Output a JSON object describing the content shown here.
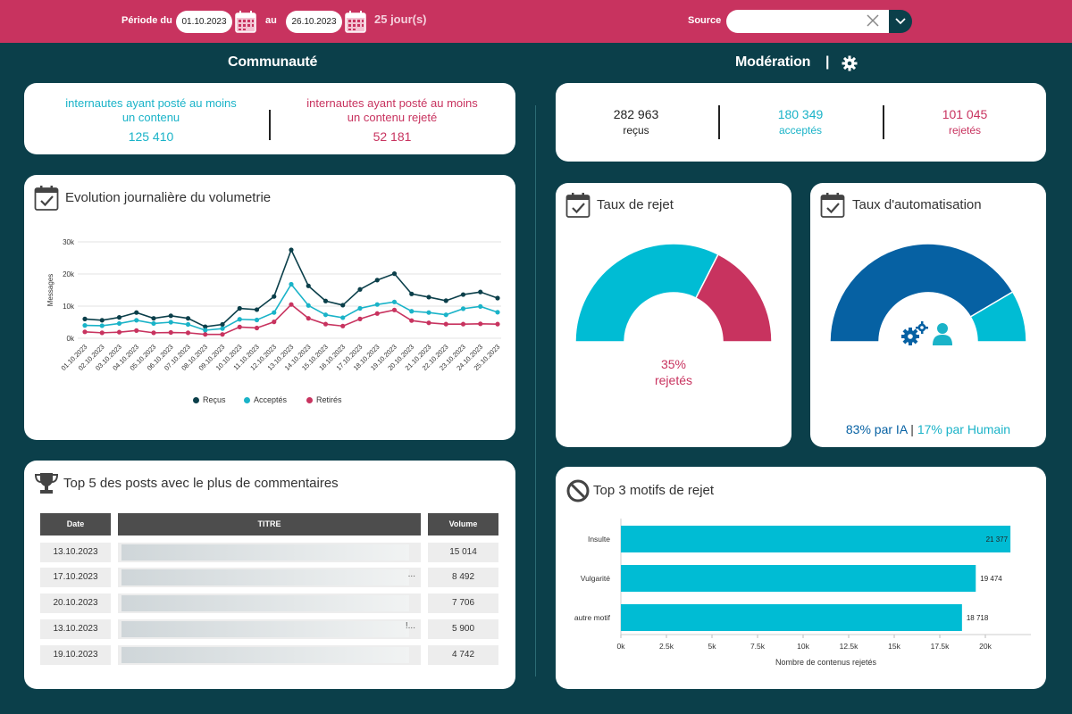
{
  "filter_bar": {
    "period_label": "Période du",
    "date_from": "01.10.2023",
    "to_label": "au",
    "date_to": "26.10.2023",
    "days": "25 jour(s)",
    "source_label": "Source",
    "source_value": "",
    "icons": [
      "calendar-icon",
      "calendar-icon",
      "close-icon",
      "chevron-down-icon"
    ]
  },
  "community": {
    "title": "Communauté",
    "kpi_posted": {
      "label_line1": "internautes ayant posté au moins",
      "label_line2": "un contenu",
      "value": "125 410",
      "color": "#1ab3c8"
    },
    "kpi_rejected": {
      "label_line1": "internautes ayant posté au moins",
      "label_line2": "un contenu rejeté",
      "value": "52 181",
      "color": "#c8335f"
    }
  },
  "moderation": {
    "title": "Modération",
    "separator": "|",
    "received": {
      "value": "282 963",
      "label": "reçus"
    },
    "accepted": {
      "value": "180 349",
      "label": "acceptés"
    },
    "rejected": {
      "value": "101 045",
      "label": "rejetés"
    }
  },
  "volumetry": {
    "title": "Evolution journalière du volumetrie",
    "chart_data": {
      "type": "line",
      "ylabel": "Messages",
      "yticks": [
        "0k",
        "10k",
        "20k",
        "30k"
      ],
      "ylim": [
        0,
        30000
      ],
      "categories": [
        "01.10.2023",
        "02.10.2023",
        "03.10.2023",
        "04.10.2023",
        "05.10.2023",
        "06.10.2023",
        "07.10.2023",
        "08.10.2023",
        "09.10.2023",
        "10.10.2023",
        "11.10.2023",
        "12.10.2023",
        "13.10.2023",
        "14.10.2023",
        "15.10.2023",
        "16.10.2023",
        "17.10.2023",
        "18.10.2023",
        "19.10.2023",
        "20.10.2023",
        "21.10.2023",
        "22.10.2023",
        "23.10.2023",
        "24.10.2023",
        "25.10.2023"
      ],
      "series": [
        {
          "name": "Reçus",
          "color": "#0b3f4a",
          "values": [
            6000,
            5600,
            6500,
            8000,
            6200,
            7000,
            6200,
            3600,
            4300,
            9300,
            8900,
            13000,
            27500,
            16300,
            11600,
            10300,
            15200,
            18100,
            20100,
            13800,
            12800,
            11700,
            13600,
            14400,
            12500
          ]
        },
        {
          "name": "Acceptés",
          "color": "#1ab3c8",
          "values": [
            4000,
            3900,
            4600,
            5600,
            4600,
            5000,
            4300,
            2500,
            3000,
            5900,
            5700,
            8000,
            16800,
            10200,
            7300,
            6400,
            9300,
            10500,
            11300,
            8400,
            8000,
            7300,
            9200,
            9900,
            8100
          ]
        },
        {
          "name": "Retirés",
          "color": "#c8335f",
          "values": [
            2000,
            1700,
            1900,
            2400,
            1700,
            1800,
            1700,
            1200,
            1200,
            3500,
            3200,
            5100,
            10500,
            6200,
            4400,
            3800,
            6000,
            7700,
            8800,
            5500,
            4800,
            4400,
            4400,
            4500,
            4400
          ]
        }
      ],
      "legend": "bottom",
      "grid": true
    }
  },
  "top_posts": {
    "title": "Top 5 des posts avec le plus de commentaires",
    "columns": [
      "Date",
      "TITRE",
      "Volume"
    ],
    "rows": [
      {
        "date": "13.10.2023",
        "ellipsis": "",
        "volume": "15 014"
      },
      {
        "date": "17.10.2023",
        "ellipsis": "...",
        "volume": "8 492"
      },
      {
        "date": "20.10.2023",
        "ellipsis": "",
        "volume": "7 706"
      },
      {
        "date": "13.10.2023",
        "ellipsis": "!...",
        "volume": "5 900"
      },
      {
        "date": "19.10.2023",
        "ellipsis": "",
        "volume": "4 742"
      }
    ]
  },
  "reject_rate": {
    "title": "Taux de rejet",
    "percent_label": "35%",
    "label": "rejetés",
    "chart_data": {
      "type": "pie",
      "style": "half-donut",
      "slices": [
        {
          "name": "acceptés",
          "value": 65,
          "color": "#00bcd4"
        },
        {
          "name": "rejetés",
          "value": 35,
          "color": "#c8335f"
        }
      ]
    }
  },
  "automation_rate": {
    "title": "Taux d'automatisation",
    "ia_label": "83% par IA",
    "sep": "|",
    "human_label": "17% par Humain",
    "chart_data": {
      "type": "pie",
      "style": "half-donut",
      "slices": [
        {
          "name": "IA",
          "value": 83,
          "color": "#0661a3"
        },
        {
          "name": "Humain",
          "value": 17,
          "color": "#00bcd4"
        }
      ]
    }
  },
  "top_reasons": {
    "title": "Top 3 motifs de rejet",
    "chart_data": {
      "type": "bar",
      "orientation": "horizontal",
      "categories": [
        "Insulte",
        "Vulgarité",
        "autre motif"
      ],
      "values": [
        21377,
        19474,
        18718
      ],
      "value_labels": [
        "21 377",
        "19 474",
        "18 718"
      ],
      "xticks": [
        "0k",
        "2.5k",
        "5k",
        "7.5k",
        "10k",
        "12.5k",
        "15k",
        "17.5k",
        "20k"
      ],
      "xlim": [
        0,
        22500
      ],
      "xlabel": "Nombre de contenus rejetés",
      "color": "#00bcd4"
    }
  }
}
